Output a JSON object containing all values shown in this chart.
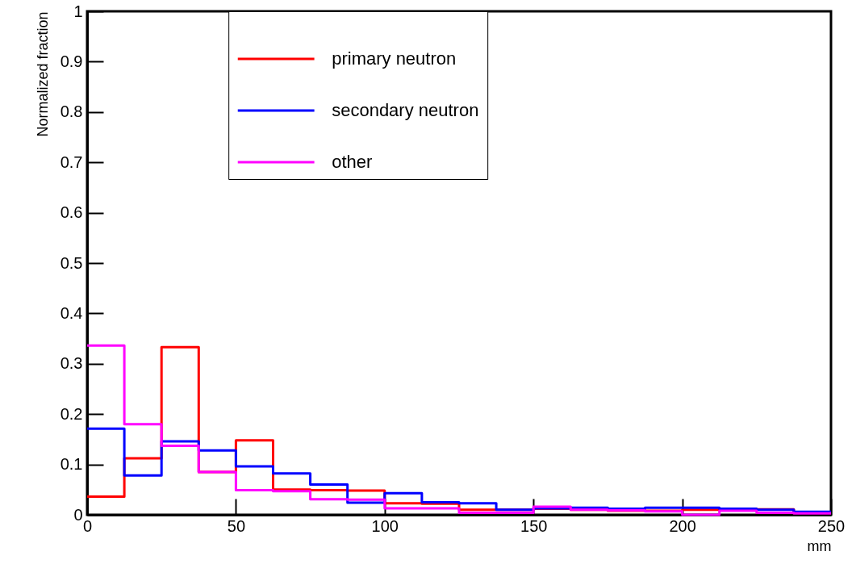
{
  "chart_data": {
    "type": "histogram",
    "xlabel": "mm",
    "ylabel": "Normalized fraction",
    "bins": [
      0,
      12.5,
      25,
      37.5,
      50,
      62.5,
      75,
      87.5,
      100,
      112.5,
      125,
      137.5,
      150,
      162.5,
      175,
      187.5,
      200,
      212.5,
      225,
      237.5,
      250
    ],
    "series": [
      {
        "name": "primary neutron",
        "color": "#ff0000",
        "values": [
          0.036,
          0.112,
          0.333,
          0.085,
          0.148,
          0.05,
          0.049,
          0.048,
          0.023,
          0.022,
          0.01,
          0.01,
          0.012,
          0.01,
          0.008,
          0.008,
          0.01,
          0.009,
          0.011,
          0.004
        ]
      },
      {
        "name": "secondary neutron",
        "color": "#0000ff",
        "values": [
          0.171,
          0.078,
          0.146,
          0.128,
          0.096,
          0.082,
          0.06,
          0.024,
          0.043,
          0.025,
          0.023,
          0.01,
          0.013,
          0.014,
          0.012,
          0.014,
          0.014,
          0.012,
          0.01,
          0.006
        ]
      },
      {
        "name": "other",
        "color": "#ff00ff",
        "values": [
          0.336,
          0.18,
          0.137,
          0.085,
          0.049,
          0.047,
          0.031,
          0.03,
          0.013,
          0.013,
          0.004,
          0.004,
          0.016,
          0.01,
          0.009,
          0.007,
          0,
          0.008,
          0.004,
          0.003
        ]
      }
    ],
    "xlim": [
      0,
      250
    ],
    "xticks": [
      0,
      50,
      100,
      150,
      200,
      250
    ],
    "ylim": [
      0,
      1
    ],
    "yticks": [
      0,
      0.1,
      0.2,
      0.3,
      0.4,
      0.5,
      0.6,
      0.7,
      0.8,
      0.9,
      1
    ],
    "legend": "top"
  }
}
